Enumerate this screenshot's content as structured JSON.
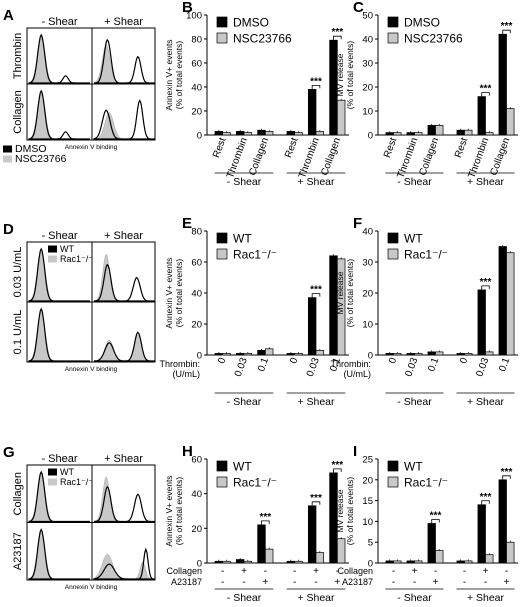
{
  "panels": {
    "A": {
      "letter": "A",
      "col_labels": [
        "- Shear",
        "+ Shear"
      ],
      "row_labels": [
        "Thrombin",
        "Collagen"
      ],
      "xlabel": "Annexin V binding",
      "legend": [
        {
          "label": "DMSO",
          "color": "#000000"
        },
        {
          "label": "NSC23766",
          "color": "#c8c8c8"
        }
      ]
    },
    "D": {
      "letter": "D",
      "col_labels": [
        "- Shear",
        "+ Shear"
      ],
      "row_labels": [
        "0.03 U/mL",
        "0.1 U/mL"
      ],
      "xlabel": "Annexin V binding",
      "legend": [
        {
          "label": "WT",
          "color": "#000000"
        },
        {
          "label": "Rac1⁻/⁻",
          "color": "#c8c8c8"
        }
      ]
    },
    "G": {
      "letter": "G",
      "col_labels": [
        "- Shear",
        "+ Shear"
      ],
      "row_labels": [
        "Collagen",
        "A23187"
      ],
      "xlabel": "Annexin V binding",
      "legend": [
        {
          "label": "WT",
          "color": "#000000"
        },
        {
          "label": "Rac1⁻/⁻",
          "color": "#c8c8c8"
        }
      ]
    }
  },
  "chart_data": [
    {
      "letter": "B",
      "type": "bar",
      "ylabel": "Annexin V+ events (% of total events)",
      "ylim": [
        0,
        100
      ],
      "yticks": [
        0,
        20,
        40,
        60,
        80,
        100
      ],
      "categories": [
        "Rest",
        "Thrombin",
        "Collagen",
        "Rest",
        "Thrombin",
        "Collagen"
      ],
      "cat_style": "rotated",
      "groups": [
        "- Shear",
        "+ Shear"
      ],
      "series": [
        {
          "name": "DMSO",
          "color": "#000000",
          "values": [
            3,
            3,
            4,
            3,
            38,
            79
          ]
        },
        {
          "name": "NSC23766",
          "color": "#c8c8c8",
          "values": [
            2,
            2,
            3,
            2,
            3,
            29
          ]
        }
      ],
      "sig": [
        {
          "index": 4,
          "text": "***"
        },
        {
          "index": 5,
          "text": "***"
        }
      ]
    },
    {
      "letter": "C",
      "type": "bar",
      "ylabel": "MV release (% of total events)",
      "ylim": [
        0,
        50
      ],
      "yticks": [
        0,
        10,
        20,
        30,
        40,
        50
      ],
      "categories": [
        "Rest",
        "Thrombin",
        "Collagen",
        "Rest",
        "Thrombin",
        "Collagen"
      ],
      "cat_style": "rotated",
      "groups": [
        "- Shear",
        "+ Shear"
      ],
      "series": [
        {
          "name": "DMSO",
          "color": "#000000",
          "values": [
            1,
            1,
            4,
            2,
            16,
            42
          ]
        },
        {
          "name": "NSC23766",
          "color": "#c8c8c8",
          "values": [
            1,
            1,
            4,
            2,
            1,
            11
          ]
        }
      ],
      "sig": [
        {
          "index": 4,
          "text": "***"
        },
        {
          "index": 5,
          "text": "***"
        }
      ]
    },
    {
      "letter": "E",
      "type": "bar",
      "ylabel": "Annexin V+ events (% of total events)",
      "ylim": [
        0,
        80
      ],
      "yticks": [
        0,
        20,
        40,
        60,
        80
      ],
      "categories": [
        "0",
        "0.03",
        "0.1",
        "0",
        "0.03",
        "0.1"
      ],
      "cat_style": "rotated",
      "row_labels": [
        {
          "label": "Thrombin:",
          "sub": "(U/mL)"
        }
      ],
      "groups": [
        "- Shear",
        "+ Shear"
      ],
      "series": [
        {
          "name": "WT",
          "color": "#000000",
          "values": [
            1,
            1,
            3,
            1,
            37,
            64
          ]
        },
        {
          "name": "Rac1⁻/⁻",
          "color": "#c8c8c8",
          "values": [
            1,
            1,
            4,
            1,
            3,
            62
          ]
        }
      ],
      "sig": [
        {
          "index": 4,
          "text": "***"
        }
      ]
    },
    {
      "letter": "F",
      "type": "bar",
      "ylabel": "MV release (% of total events)",
      "ylim": [
        0,
        40
      ],
      "yticks": [
        0,
        10,
        20,
        30,
        40
      ],
      "categories": [
        "0",
        "0.03",
        "0.1",
        "0",
        "0.03",
        "0.1"
      ],
      "cat_style": "rotated",
      "row_labels": [
        {
          "label": "Thrombin:",
          "sub": "(U/mL)"
        }
      ],
      "groups": [
        "- Shear",
        "+ Shear"
      ],
      "series": [
        {
          "name": "WT",
          "color": "#000000",
          "values": [
            0.5,
            0.5,
            1,
            0.5,
            21,
            35
          ]
        },
        {
          "name": "Rac1⁻/⁻",
          "color": "#c8c8c8",
          "values": [
            0.5,
            0.5,
            1,
            0.5,
            1,
            33
          ]
        }
      ],
      "sig": [
        {
          "index": 4,
          "text": "***"
        }
      ]
    },
    {
      "letter": "H",
      "type": "bar",
      "ylabel": "Annexin V+ events (% of total events)",
      "ylim": [
        0,
        60
      ],
      "yticks": [
        0,
        20,
        40,
        60
      ],
      "categories": [
        "",
        "",
        "",
        "",
        "",
        ""
      ],
      "cat_style": "table",
      "row_labels": [
        {
          "label": "Collagen",
          "marks": [
            "-",
            "+",
            "-",
            "-",
            "+",
            "-"
          ]
        },
        {
          "label": "A23187",
          "marks": [
            "-",
            "-",
            "+",
            "-",
            "-",
            "+"
          ]
        }
      ],
      "groups": [
        "- Shear",
        "+ Shear"
      ],
      "series": [
        {
          "name": "WT",
          "color": "#000000",
          "values": [
            1,
            2,
            22,
            1,
            33,
            52
          ]
        },
        {
          "name": "Rac1⁻/⁻",
          "color": "#c8c8c8",
          "values": [
            1,
            1,
            8,
            1,
            6,
            14
          ]
        }
      ],
      "sig": [
        {
          "index": 2,
          "text": "***"
        },
        {
          "index": 4,
          "text": "***"
        },
        {
          "index": 5,
          "text": "***"
        }
      ]
    },
    {
      "letter": "I",
      "type": "bar",
      "ylabel": "MV release (% of total events)",
      "ylim": [
        0,
        25
      ],
      "yticks": [
        0,
        5,
        10,
        15,
        20,
        25
      ],
      "categories": [
        "",
        "",
        "",
        "",
        "",
        ""
      ],
      "cat_style": "table",
      "row_labels": [
        {
          "label": "Collagen",
          "marks": [
            "-",
            "+",
            "-",
            "-",
            "+",
            "-"
          ]
        },
        {
          "label": "A23187",
          "marks": [
            "-",
            "-",
            "+",
            "-",
            "-",
            "+"
          ]
        }
      ],
      "groups": [
        "- Shear",
        "+ Shear"
      ],
      "series": [
        {
          "name": "WT",
          "color": "#000000",
          "values": [
            0.5,
            0.5,
            9.5,
            0.5,
            14,
            20
          ]
        },
        {
          "name": "Rac1⁻/⁻",
          "color": "#c8c8c8",
          "values": [
            0.5,
            0.5,
            3,
            0.5,
            2,
            5
          ]
        }
      ],
      "sig": [
        {
          "index": 2,
          "text": "***"
        },
        {
          "index": 4,
          "text": "***"
        },
        {
          "index": 5,
          "text": "***"
        }
      ]
    }
  ]
}
